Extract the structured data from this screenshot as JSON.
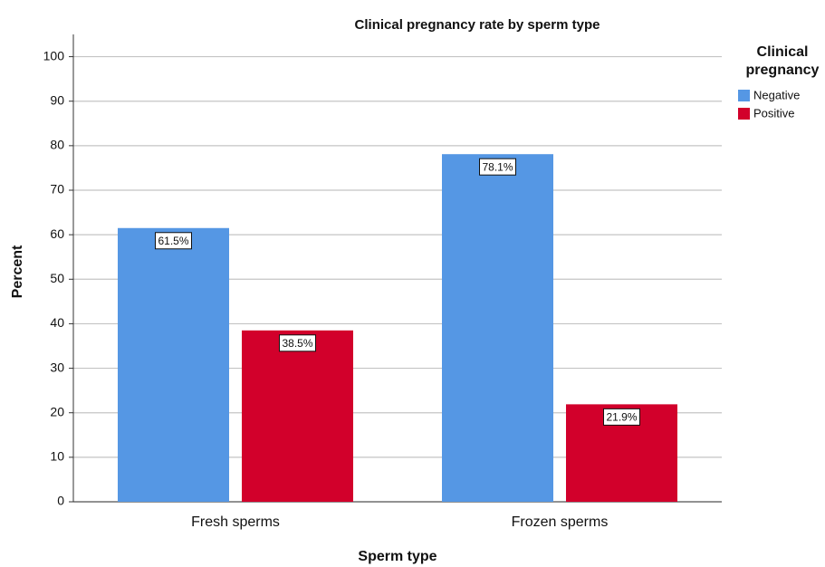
{
  "chart_data": {
    "type": "bar",
    "title": "Clinical pregnancy rate by sperm type",
    "x_label": "Sperm type",
    "y_label": "Percent",
    "legend_title": "Clinical pregnancy",
    "legend_position": "right",
    "grid": true,
    "categories": [
      "Fresh sperms",
      "Frozen sperms"
    ],
    "series": [
      {
        "name": "Negative",
        "color": "#5597e4",
        "values": [
          61.5,
          78.1
        ],
        "value_labels": [
          "61.5%",
          "78.1%"
        ]
      },
      {
        "name": "Positive",
        "color": "#d2002b",
        "values": [
          38.5,
          21.9
        ],
        "value_labels": [
          "38.5%",
          "21.9%"
        ]
      }
    ],
    "ylim": [
      0,
      105
    ],
    "yticks": [
      0,
      10,
      20,
      30,
      40,
      50,
      60,
      70,
      80,
      90,
      100
    ]
  }
}
